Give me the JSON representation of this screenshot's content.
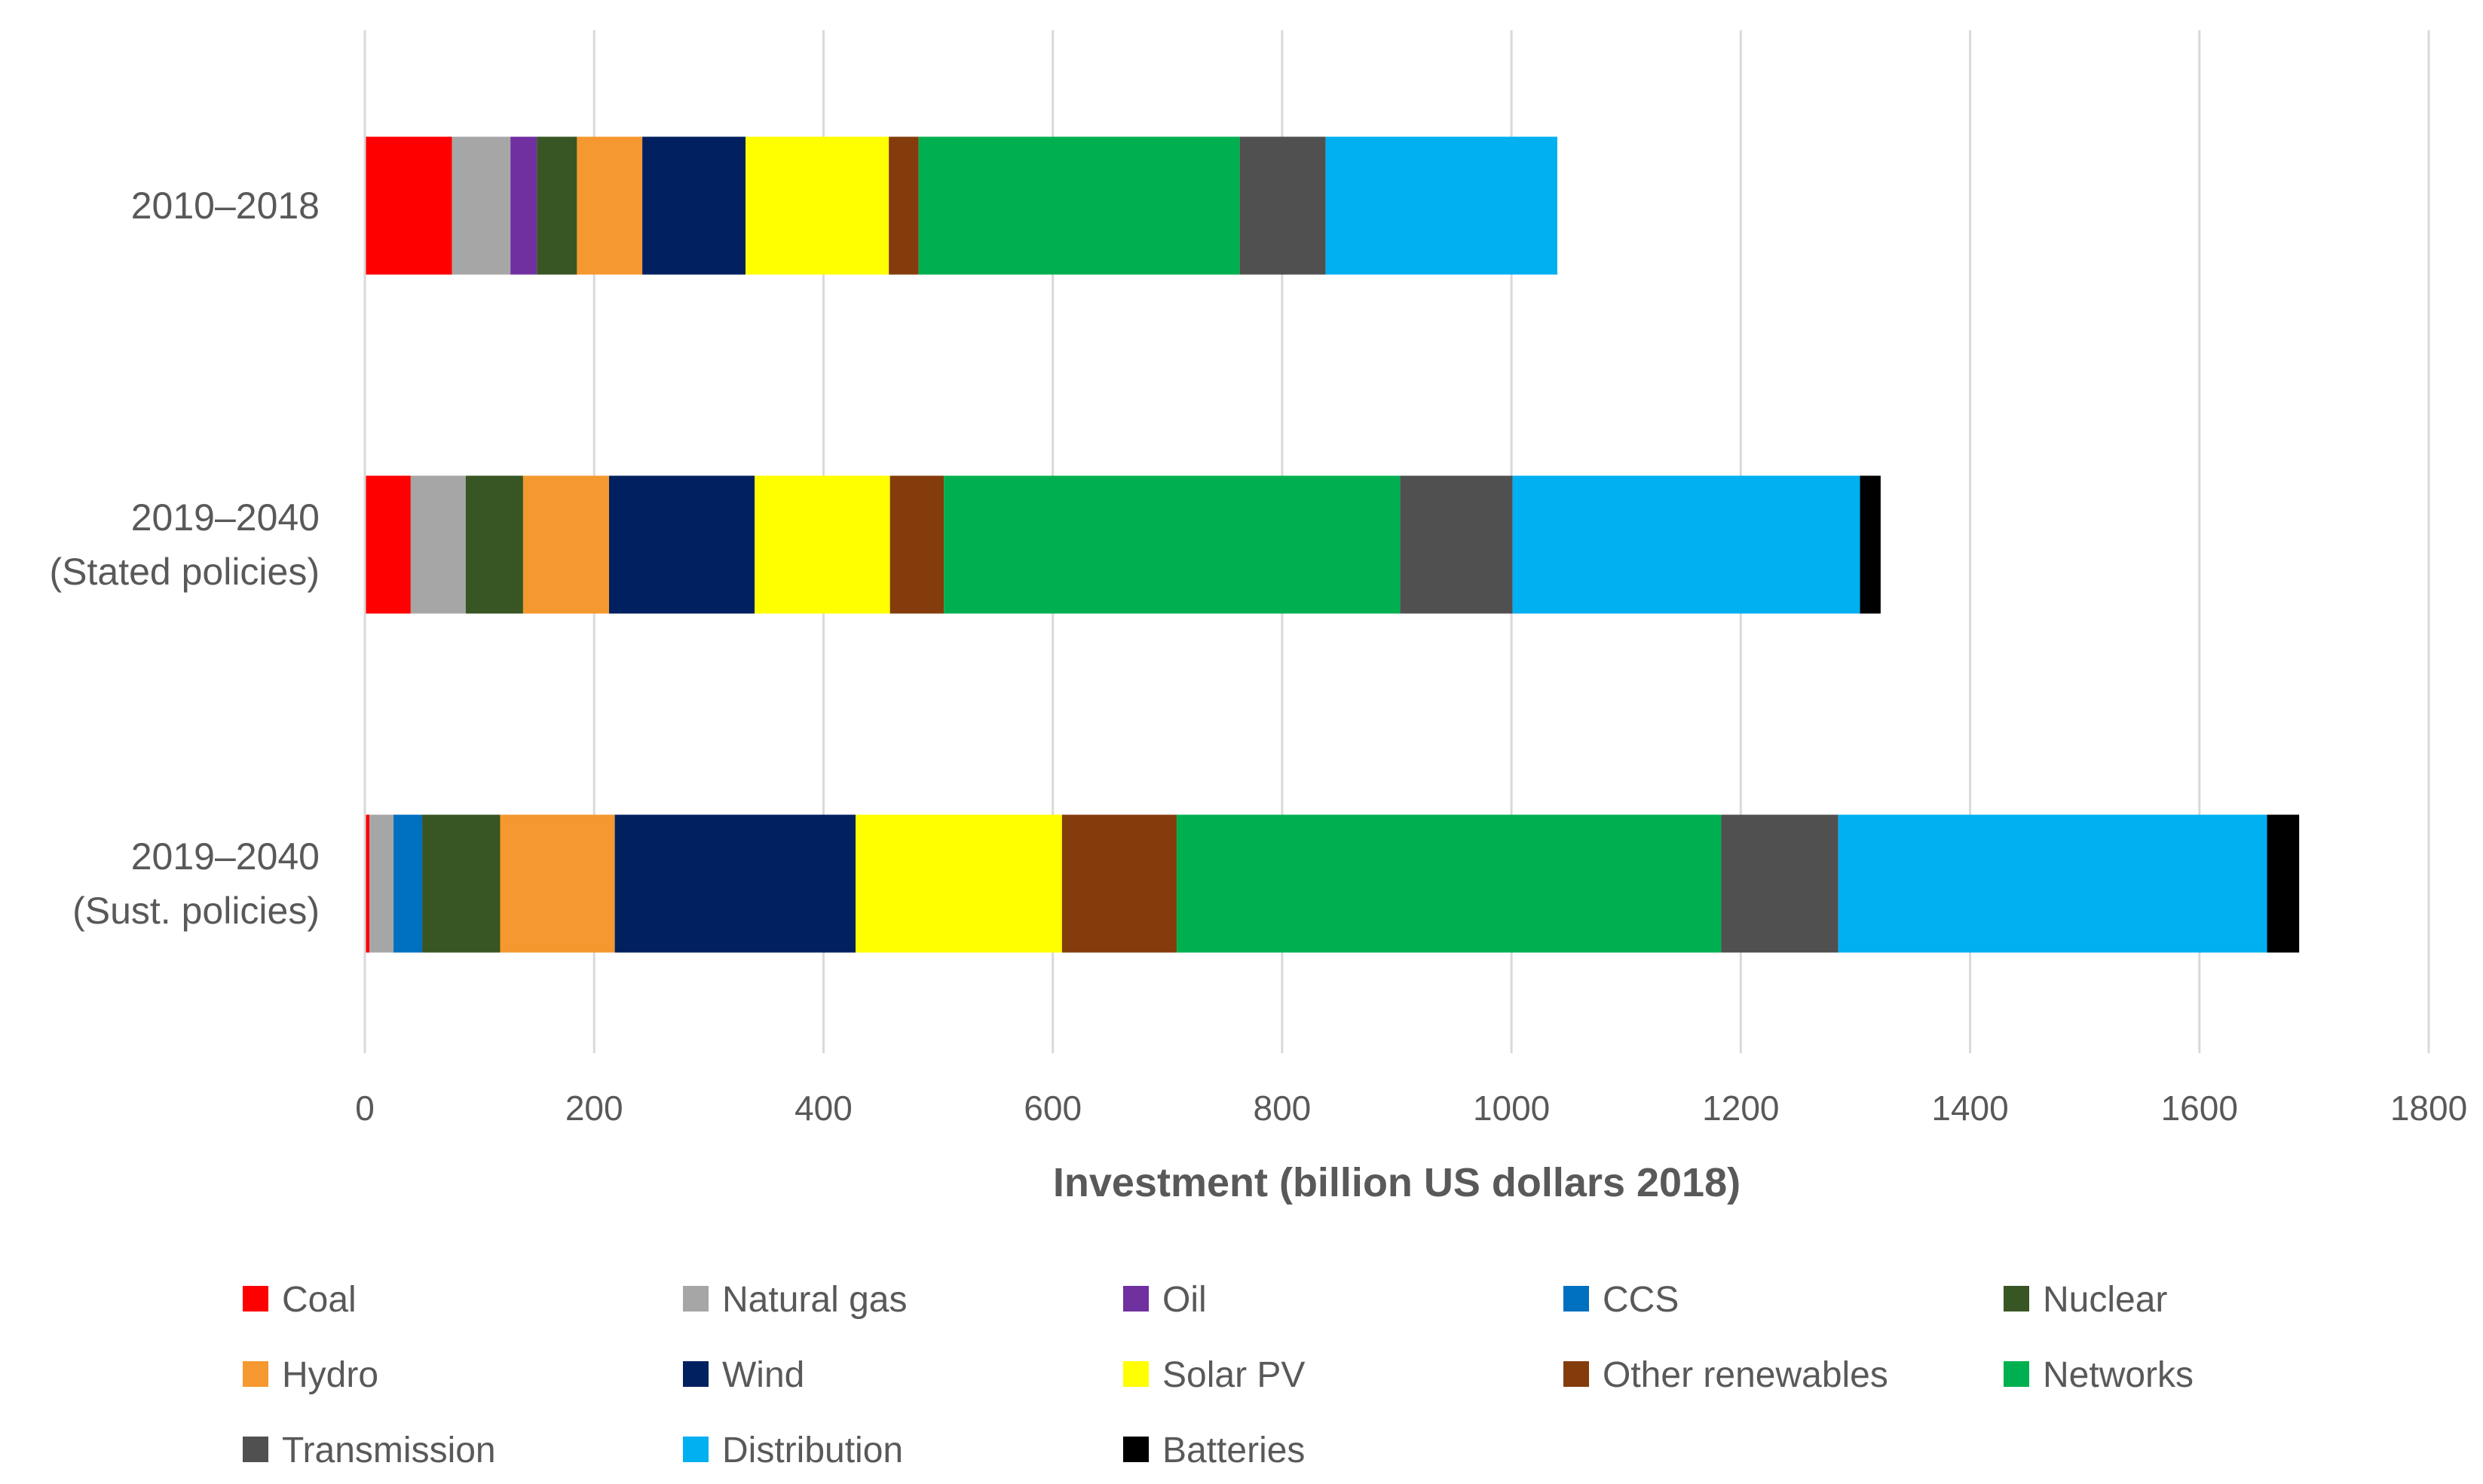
{
  "chart_data": {
    "type": "bar",
    "orientation": "horizontal",
    "stacked": true,
    "categories": [
      "2010–2018",
      "2019–2040\n(Stated policies)",
      "2019–2040\n(Sust. policies)"
    ],
    "series": [
      {
        "name": "Coal",
        "color": "#FF0000",
        "values": [
          76,
          40,
          4
        ]
      },
      {
        "name": "Natural gas",
        "color": "#A6A6A6",
        "values": [
          51,
          48,
          21
        ]
      },
      {
        "name": "Oil",
        "color": "#7030A0",
        "values": [
          23,
          0,
          0
        ]
      },
      {
        "name": "CCS",
        "color": "#0070C0",
        "values": [
          0,
          0,
          25
        ]
      },
      {
        "name": "Nuclear",
        "color": "#375623",
        "values": [
          35,
          50,
          68
        ]
      },
      {
        "name": "Hydro",
        "color": "#F4982F",
        "values": [
          57,
          75,
          100
        ]
      },
      {
        "name": "Wind",
        "color": "#002060",
        "values": [
          90,
          127,
          210
        ]
      },
      {
        "name": "Solar PV",
        "color": "#FFFF00",
        "values": [
          125,
          118,
          180
        ]
      },
      {
        "name": "Other renewables",
        "color": "#843C0C",
        "values": [
          26,
          47,
          100
        ]
      },
      {
        "name": "Networks",
        "color": "#00B050",
        "values": [
          280,
          398,
          475
        ]
      },
      {
        "name": "Transmission",
        "color": "#505050",
        "values": [
          75,
          98,
          102
        ]
      },
      {
        "name": "Distribution",
        "color": "#00B0F0",
        "values": [
          202,
          303,
          374
        ]
      },
      {
        "name": "Batteries",
        "color": "#000000",
        "values": [
          0,
          18,
          28
        ]
      }
    ],
    "xlabel": "Investment (billion US dollars 2018)",
    "xlim": [
      0,
      1800
    ],
    "xticks": [
      "0",
      "200",
      "400",
      "600",
      "800",
      "1000",
      "1200",
      "1400",
      "1600",
      "1800"
    ],
    "grid": "vertical",
    "legend_position": "bottom"
  }
}
